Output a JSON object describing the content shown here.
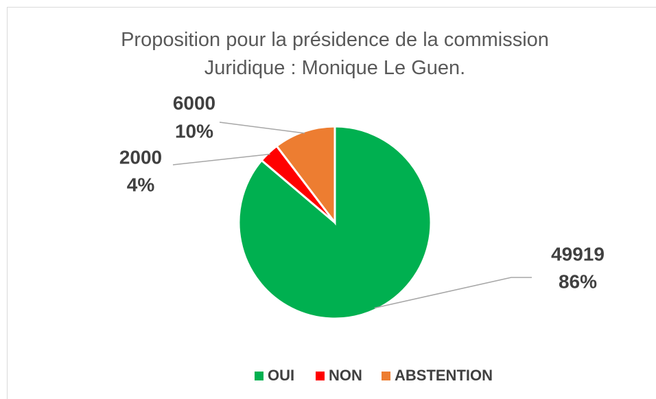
{
  "chart_data": {
    "type": "pie",
    "title": "Proposition pour la présidence de la commission Juridique : Monique Le Guen.",
    "categories": [
      "OUI",
      "NON",
      "ABSTENTION"
    ],
    "values": [
      49919,
      2000,
      6000
    ],
    "percentages": [
      {
        "value": 86,
        "label": "86%"
      },
      {
        "value": 4,
        "label": "4%"
      },
      {
        "value": 10,
        "label": "10%"
      }
    ],
    "colors": [
      "#00b050",
      "#ff0000",
      "#ed7d31"
    ],
    "legend": "bottom"
  }
}
